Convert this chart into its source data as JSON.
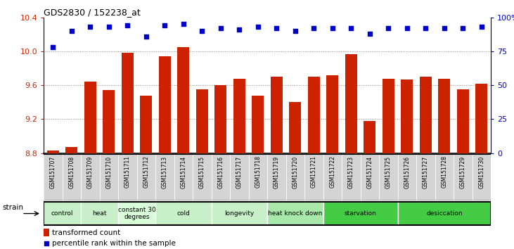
{
  "title": "GDS2830 / 152238_at",
  "samples": [
    "GSM151707",
    "GSM151708",
    "GSM151709",
    "GSM151710",
    "GSM151711",
    "GSM151712",
    "GSM151713",
    "GSM151714",
    "GSM151715",
    "GSM151716",
    "GSM151717",
    "GSM151718",
    "GSM151719",
    "GSM151720",
    "GSM151721",
    "GSM151722",
    "GSM151723",
    "GSM151724",
    "GSM151725",
    "GSM151726",
    "GSM151727",
    "GSM151728",
    "GSM151729",
    "GSM151730"
  ],
  "bar_values": [
    8.83,
    8.87,
    9.64,
    9.54,
    9.98,
    9.48,
    9.94,
    10.05,
    9.55,
    9.6,
    9.68,
    9.48,
    9.7,
    9.4,
    9.7,
    9.72,
    9.97,
    9.18,
    9.68,
    9.67,
    9.7,
    9.68,
    9.55,
    9.62
  ],
  "percentile_values": [
    78,
    90,
    93,
    93,
    94,
    86,
    94,
    95,
    90,
    92,
    91,
    93,
    92,
    90,
    92,
    92,
    92,
    88,
    92,
    92,
    92,
    92,
    92,
    93
  ],
  "bar_color": "#cc2200",
  "dot_color": "#0000cc",
  "ylim_left": [
    8.8,
    10.4
  ],
  "ylim_right": [
    0,
    100
  ],
  "yticks_left": [
    8.8,
    9.2,
    9.6,
    10.0,
    10.4
  ],
  "yticks_right": [
    0,
    25,
    50,
    75,
    100
  ],
  "ytick_labels_right": [
    "0",
    "25",
    "50",
    "75",
    "100%"
  ],
  "groups": [
    {
      "label": "control",
      "start": 0,
      "end": 2,
      "color": "#c8f0c8"
    },
    {
      "label": "heat",
      "start": 2,
      "end": 4,
      "color": "#c8f0c8"
    },
    {
      "label": "constant 30\ndegrees",
      "start": 4,
      "end": 6,
      "color": "#d8fcd8"
    },
    {
      "label": "cold",
      "start": 6,
      "end": 9,
      "color": "#c8f0c8"
    },
    {
      "label": "longevity",
      "start": 9,
      "end": 12,
      "color": "#c8f0c8"
    },
    {
      "label": "heat knock down",
      "start": 12,
      "end": 15,
      "color": "#a8e8a8"
    },
    {
      "label": "starvation",
      "start": 15,
      "end": 19,
      "color": "#44cc44"
    },
    {
      "label": "desiccation",
      "start": 19,
      "end": 24,
      "color": "#44cc44"
    }
  ],
  "sample_box_color": "#d4d4d4",
  "sample_box_border": "#aaaaaa",
  "grid_color": "#888888",
  "strain_label": "strain",
  "legend_bar_label": "transformed count",
  "legend_dot_label": "percentile rank within the sample"
}
